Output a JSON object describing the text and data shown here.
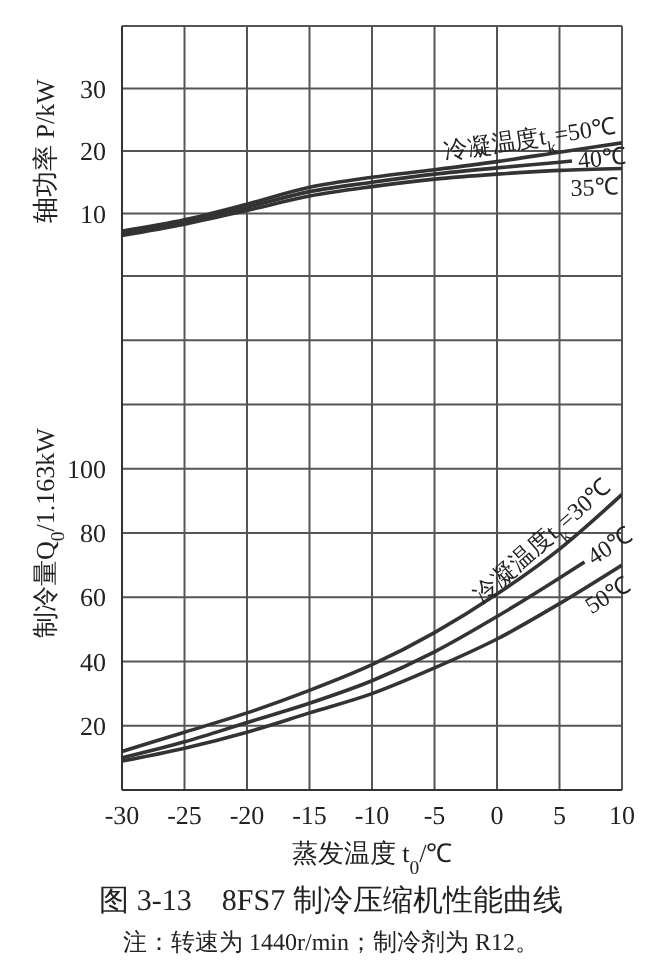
{
  "chart_data": [
    {
      "type": "line",
      "ylabel": "轴功率 P/kW",
      "xlim": [
        -30,
        10
      ],
      "xticks": [
        -30,
        -25,
        -20,
        -15,
        -10,
        -5,
        0,
        5,
        10
      ],
      "ylim": [
        0,
        40
      ],
      "yticks": [
        {
          "value": 0,
          "label": null
        },
        10,
        20,
        30,
        {
          "value": 40,
          "label": null
        }
      ],
      "grid": true,
      "tick_labels": "y",
      "line_style": "solid",
      "marker": "none",
      "series": [
        {
          "name": "冷凝温度t$_{k}$=50℃",
          "color": "#333333",
          "x": [
            -30,
            -25,
            -20,
            -15,
            -10,
            -5,
            0,
            5,
            10
          ],
          "values": [
            7.2,
            9,
            11.5,
            14.2,
            15.8,
            17,
            18.3,
            19.8,
            21.3
          ]
        },
        {
          "name": "40℃",
          "color": "#333333",
          "x": [
            -30,
            -25,
            -20,
            -15,
            -10,
            -5,
            0,
            5,
            6
          ],
          "values": [
            6.8,
            8.7,
            11,
            13.5,
            15,
            16.3,
            17.3,
            18.2,
            18.4
          ]
        },
        {
          "name": "35℃",
          "color": "#333333",
          "x": [
            -30,
            -25,
            -20,
            -15,
            -10,
            -5,
            0,
            5,
            10
          ],
          "values": [
            6.5,
            8.3,
            10.5,
            12.8,
            14.3,
            15.5,
            16.3,
            16.9,
            17.2
          ]
        }
      ]
    },
    {
      "type": "line",
      "title": "图 3-13　8FS7 制冷压缩机性能曲线",
      "xlabel": "蒸发温度 t$_{0}$/℃",
      "ylabel": "制冷量Q$_{0}$/1.163kW",
      "xlim": [
        -30,
        10
      ],
      "xticks": [
        -30,
        -25,
        -20,
        -15,
        -10,
        -5,
        0,
        5,
        10
      ],
      "ylim": [
        0,
        160
      ],
      "yticks": [
        20,
        40,
        60,
        80,
        100,
        {
          "value": 120,
          "label": null
        },
        {
          "value": 140,
          "label": null
        }
      ],
      "grid": true,
      "line_style": "solid",
      "marker": "none",
      "annotations": [
        "注：转速为 1440r/min；制冷剂为 R12。"
      ],
      "series": [
        {
          "name": "冷凝温度t$_{k}$=30℃",
          "color": "#333333",
          "x": [
            -30,
            -25,
            -20,
            -15,
            -10,
            -5,
            0,
            5,
            10
          ],
          "values": [
            12,
            18,
            24,
            31,
            39,
            49,
            61,
            75,
            92
          ]
        },
        {
          "name": "40℃",
          "color": "#333333",
          "x": [
            -30,
            -25,
            -20,
            -15,
            -10,
            -5,
            0,
            5,
            7
          ],
          "values": [
            10,
            15,
            21,
            27,
            34,
            43,
            54,
            66,
            71
          ]
        },
        {
          "name": "50℃",
          "color": "#333333",
          "x": [
            -30,
            -25,
            -20,
            -15,
            -10,
            -5,
            0,
            5,
            10
          ],
          "values": [
            9,
            13,
            18,
            24,
            30,
            38,
            47,
            58,
            70
          ]
        }
      ]
    }
  ]
}
